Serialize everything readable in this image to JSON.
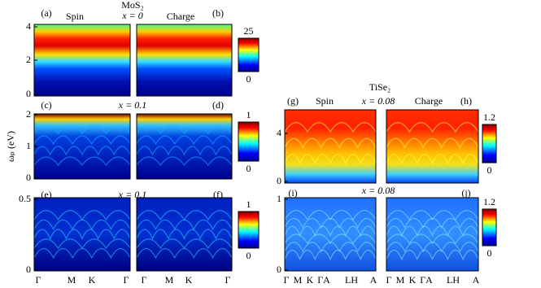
{
  "left": {
    "title": "MoS₂",
    "y_axis_label": "ωₚ (eV)",
    "rows": [
      {
        "panels": [
          "(a)",
          "(b)"
        ],
        "channels": [
          "Spin",
          "Charge"
        ],
        "doping": "x = 0",
        "yticks": [
          "4",
          "2",
          "0"
        ],
        "colorbar": [
          "25",
          "0"
        ]
      },
      {
        "panels": [
          "(c)",
          "(d)"
        ],
        "doping": "x = 0.1",
        "yticks": [
          "2",
          "1",
          "0"
        ],
        "colorbar": [
          "1",
          "0"
        ]
      },
      {
        "panels": [
          "(e)",
          "(f)"
        ],
        "doping": "x = 0.1",
        "yticks": [
          "0.5",
          "0"
        ],
        "colorbar": [
          "1",
          "0"
        ]
      }
    ],
    "x_ticks": [
      "Γ",
      "M",
      "K",
      "Γ"
    ]
  },
  "right": {
    "title": "TiSe₂",
    "rows": [
      {
        "panels": [
          "(g)",
          "(h)"
        ],
        "channels": [
          "Spin",
          "Charge"
        ],
        "doping": "x = 0.08",
        "yticks": [
          "4",
          "0"
        ],
        "colorbar": [
          "1.2",
          "0"
        ]
      },
      {
        "panels": [
          "(i)",
          "(j)"
        ],
        "doping": "x = 0.08",
        "yticks": [
          "1",
          "0"
        ],
        "colorbar": [
          "1.2",
          "0"
        ]
      }
    ],
    "x_ticks": [
      "Γ",
      "M",
      "K",
      "ΓA",
      "LH",
      "A"
    ]
  }
}
